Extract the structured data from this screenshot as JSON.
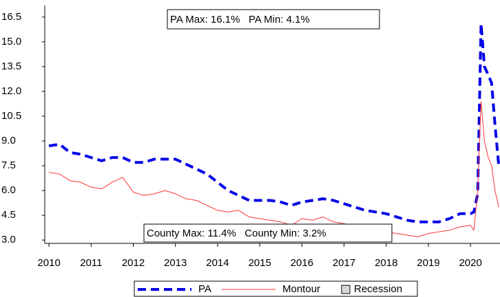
{
  "chart_data": {
    "type": "line",
    "x": [
      2010.0,
      2010.25,
      2010.5,
      2010.75,
      2011.0,
      2011.25,
      2011.5,
      2011.75,
      2012.0,
      2012.25,
      2012.5,
      2012.75,
      2013.0,
      2013.25,
      2013.5,
      2013.75,
      2014.0,
      2014.25,
      2014.5,
      2014.75,
      2015.0,
      2015.25,
      2015.5,
      2015.75,
      2016.0,
      2016.25,
      2016.5,
      2016.75,
      2017.0,
      2017.25,
      2017.5,
      2017.75,
      2018.0,
      2018.25,
      2018.5,
      2018.75,
      2019.0,
      2019.25,
      2019.5,
      2019.75,
      2020.0,
      2020.08,
      2020.17,
      2020.25,
      2020.33,
      2020.42,
      2020.5,
      2020.58,
      2020.67
    ],
    "series": [
      {
        "name": "PA",
        "color": "#0000e6",
        "dash": true,
        "values": [
          8.7,
          8.8,
          8.3,
          8.2,
          8.0,
          7.8,
          8.0,
          8.0,
          7.7,
          7.7,
          7.9,
          7.9,
          7.9,
          7.6,
          7.3,
          7.0,
          6.5,
          6.0,
          5.7,
          5.4,
          5.4,
          5.4,
          5.3,
          5.1,
          5.3,
          5.4,
          5.5,
          5.4,
          5.2,
          5.0,
          4.8,
          4.7,
          4.6,
          4.4,
          4.2,
          4.1,
          4.1,
          4.1,
          4.3,
          4.6,
          4.6,
          4.7,
          5.8,
          16.1,
          13.5,
          13.0,
          12.5,
          10.0,
          7.5
        ]
      },
      {
        "name": "Montour",
        "color": "#ff3333",
        "dash": false,
        "values": [
          7.1,
          7.0,
          6.6,
          6.5,
          6.2,
          6.1,
          6.5,
          6.8,
          5.9,
          5.7,
          5.8,
          6.0,
          5.8,
          5.5,
          5.4,
          5.1,
          4.8,
          4.7,
          4.8,
          4.4,
          4.3,
          4.2,
          4.1,
          3.9,
          4.3,
          4.2,
          4.4,
          4.1,
          4.0,
          3.8,
          3.9,
          3.7,
          3.5,
          3.4,
          3.3,
          3.2,
          3.4,
          3.5,
          3.6,
          3.8,
          3.9,
          3.6,
          6.0,
          11.4,
          9.0,
          8.0,
          7.5,
          6.0,
          5.0
        ]
      }
    ],
    "legend_extra": {
      "name": "Recession",
      "color": "#d9d9d9"
    },
    "annotations": [
      "PA Max: 16.1%   PA Min: 4.1%",
      "County Max: 11.4%   County Min: 3.2%"
    ],
    "xlim": [
      2009.9,
      2020.7
    ],
    "xticks": [
      2010,
      2011,
      2012,
      2013,
      2014,
      2015,
      2016,
      2017,
      2018,
      2019,
      2020
    ],
    "ylim": [
      2.8,
      17.2
    ],
    "yticks": [
      {
        "value": 3,
        "label": "3.0"
      },
      4.5,
      {
        "value": 6,
        "label": "6.0"
      },
      7.5,
      {
        "value": 9,
        "label": "9.0"
      },
      10.5,
      {
        "value": 12,
        "label": "12.0"
      },
      13.5,
      {
        "value": 15,
        "label": "15.0"
      },
      16.5
    ],
    "grid": false
  }
}
